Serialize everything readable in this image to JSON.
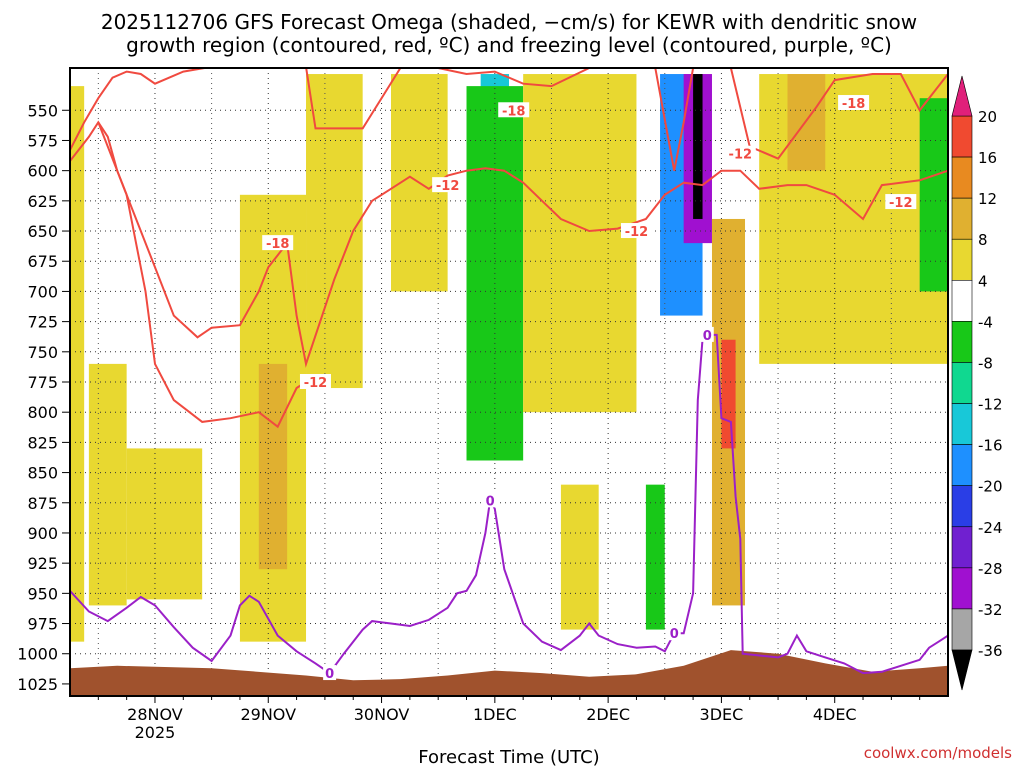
{
  "chart_data": {
    "type": "heatmap",
    "title_line1": "2025112706 GFS Forecast Omega (shaded, −cm/s) for KEWR with dendritic snow",
    "title_line2": "growth region (contoured, red, ºC) and freezing level (contoured, purple, ºC)",
    "xlabel": "Forecast Time (UTC)",
    "credit": "coolwx.com/models",
    "x_range_hours": [
      0,
      186
    ],
    "x_ticks": [
      {
        "hour": 18,
        "label": "28NOV",
        "sub": "2025"
      },
      {
        "hour": 42,
        "label": "29NOV",
        "sub": ""
      },
      {
        "hour": 66,
        "label": "30NOV",
        "sub": ""
      },
      {
        "hour": 90,
        "label": "1DEC",
        "sub": ""
      },
      {
        "hour": 114,
        "label": "2DEC",
        "sub": ""
      },
      {
        "hour": 138,
        "label": "3DEC",
        "sub": ""
      },
      {
        "hour": 162,
        "label": "4DEC",
        "sub": ""
      }
    ],
    "y_range_hpa": [
      515,
      1035
    ],
    "y_ticks": [
      "550",
      "575",
      "600",
      "625",
      "650",
      "675",
      "700",
      "725",
      "750",
      "775",
      "800",
      "825",
      "850",
      "875",
      "900",
      "925",
      "950",
      "975",
      "1000",
      "1025"
    ],
    "colorbar": {
      "ticks": [
        "20",
        "16",
        "12",
        "8",
        "4",
        "-4",
        "-8",
        "-12",
        "-16",
        "-20",
        "-24",
        "-28",
        "-32",
        "-36"
      ],
      "bins": [
        {
          "range": [
            -36,
            -32
          ],
          "color": "#a6a6a6"
        },
        {
          "range": [
            -32,
            -28
          ],
          "color": "#a010d0"
        },
        {
          "range": [
            -28,
            -24
          ],
          "color": "#7020d0"
        },
        {
          "range": [
            -24,
            -20
          ],
          "color": "#2a3ee6"
        },
        {
          "range": [
            -20,
            -16
          ],
          "color": "#1e90ff"
        },
        {
          "range": [
            -16,
            -12
          ],
          "color": "#18c8d8"
        },
        {
          "range": [
            -12,
            -8
          ],
          "color": "#10d890"
        },
        {
          "range": [
            -8,
            -4
          ],
          "color": "#18c818"
        },
        {
          "range": [
            -4,
            4
          ],
          "color": "#ffffff"
        },
        {
          "range": [
            4,
            8
          ],
          "color": "#e8d830"
        },
        {
          "range": [
            8,
            12
          ],
          "color": "#e0b030"
        },
        {
          "range": [
            12,
            16
          ],
          "color": "#e88a20"
        },
        {
          "range": [
            16,
            20
          ],
          "color": "#f04a30"
        },
        {
          "range": [
            20,
            24
          ],
          "color": "#f03070"
        }
      ],
      "over_color": "#e0207a",
      "under_color": "#000000"
    },
    "shaded_regions": [
      {
        "name": "weak-ascent-early",
        "t": [
          0,
          3
        ],
        "p": [
          530,
          990
        ],
        "value": 6
      },
      {
        "name": "weak-ascent-28nov-a",
        "t": [
          4,
          12
        ],
        "p": [
          760,
          960
        ],
        "value": 6
      },
      {
        "name": "weak-ascent-28nov-b",
        "t": [
          12,
          28
        ],
        "p": [
          830,
          955
        ],
        "value": 6
      },
      {
        "name": "weak-ascent-29nov",
        "t": [
          36,
          50
        ],
        "p": [
          620,
          990
        ],
        "value": 6
      },
      {
        "name": "moderate-ascent-29nov",
        "t": [
          40,
          46
        ],
        "p": [
          760,
          930
        ],
        "value": 10
      },
      {
        "name": "weak-ascent-30nov",
        "t": [
          50,
          62
        ],
        "p": [
          520,
          780
        ],
        "value": 6
      },
      {
        "name": "weak-ascent-30nov-b",
        "t": [
          68,
          80
        ],
        "p": [
          520,
          700
        ],
        "value": 6
      },
      {
        "name": "descent-1dec-core",
        "t": [
          87,
          93
        ],
        "p": [
          520,
          640
        ],
        "value": -13
      },
      {
        "name": "descent-1dec-column",
        "t": [
          84,
          96
        ],
        "p": [
          530,
          840
        ],
        "value": -6
      },
      {
        "name": "weak-ascent-2dec",
        "t": [
          96,
          120
        ],
        "p": [
          520,
          800
        ],
        "value": 6
      },
      {
        "name": "weak-ascent-2dec-low",
        "t": [
          104,
          112
        ],
        "p": [
          860,
          980
        ],
        "value": 6
      },
      {
        "name": "descent-2dec-low",
        "t": [
          122,
          126
        ],
        "p": [
          860,
          980
        ],
        "value": -6
      },
      {
        "name": "strong-descent-2dec",
        "t": [
          125,
          134
        ],
        "p": [
          520,
          720
        ],
        "value": -18
      },
      {
        "name": "strong-descent-core",
        "t": [
          130,
          136
        ],
        "p": [
          520,
          660
        ],
        "value": -30
      },
      {
        "name": "extreme-descent-core",
        "t": [
          132,
          134
        ],
        "p": [
          520,
          640
        ],
        "value": -40
      },
      {
        "name": "ascent-3dec-column",
        "t": [
          136,
          143
        ],
        "p": [
          640,
          960
        ],
        "value": 10
      },
      {
        "name": "ascent-3dec-core",
        "t": [
          138,
          141
        ],
        "p": [
          740,
          830
        ],
        "value": 17
      },
      {
        "name": "ascent-4dec",
        "t": [
          146,
          186
        ],
        "p": [
          520,
          760
        ],
        "value": 6
      },
      {
        "name": "ascent-4dec-core",
        "t": [
          152,
          160
        ],
        "p": [
          520,
          600
        ],
        "value": 10
      },
      {
        "name": "descent-4dec-east",
        "t": [
          180,
          186
        ],
        "p": [
          540,
          700
        ],
        "value": -6
      }
    ],
    "contours": [
      {
        "name": "dgz-upper",
        "color": "#f04a40",
        "series_label": "dendritic snow growth region (red)",
        "labels": [
          {
            "text": "-18",
            "t": 94,
            "p": 550
          },
          {
            "text": "-12",
            "t": 80,
            "p": 612
          },
          {
            "text": "-12",
            "t": 120,
            "p": 650
          },
          {
            "text": "-12",
            "t": 142,
            "p": 586
          },
          {
            "text": "-18",
            "t": 166,
            "p": 544
          },
          {
            "text": "-12",
            "t": 176,
            "p": 626
          }
        ],
        "points": [
          [
            0,
            583
          ],
          [
            3,
            560
          ],
          [
            6,
            540
          ],
          [
            9,
            523
          ],
          [
            12,
            518
          ],
          [
            15,
            520
          ],
          [
            18,
            528
          ],
          [
            24,
            518
          ],
          [
            30,
            514
          ],
          [
            40,
            514
          ],
          [
            50,
            514
          ],
          [
            52,
            565
          ],
          [
            62,
            565
          ],
          [
            70,
            515
          ],
          [
            78,
            515
          ],
          [
            84,
            520
          ],
          [
            90,
            518
          ],
          [
            96,
            528
          ],
          [
            102,
            530
          ],
          [
            110,
            515
          ],
          [
            120,
            515
          ],
          [
            124,
            515
          ],
          [
            128,
            600
          ],
          [
            130,
            560
          ],
          [
            132,
            515
          ],
          [
            140,
            515
          ],
          [
            144,
            580
          ],
          [
            150,
            590
          ],
          [
            158,
            548
          ],
          [
            162,
            525
          ],
          [
            170,
            520
          ],
          [
            176,
            520
          ],
          [
            180,
            550
          ],
          [
            186,
            520
          ]
        ]
      },
      {
        "name": "dgz-lower",
        "color": "#f04a40",
        "series_label": "dendritic snow growth region (red)",
        "labels": [
          {
            "text": "-18",
            "t": 44,
            "p": 660
          },
          {
            "text": "-12",
            "t": 52,
            "p": 775
          }
        ],
        "points": [
          [
            0,
            592
          ],
          [
            4,
            572
          ],
          [
            6,
            560
          ],
          [
            8,
            572
          ],
          [
            10,
            600
          ],
          [
            14,
            640
          ],
          [
            18,
            680
          ],
          [
            22,
            720
          ],
          [
            27,
            738
          ],
          [
            30,
            730
          ],
          [
            36,
            728
          ],
          [
            40,
            700
          ],
          [
            42,
            680
          ],
          [
            44,
            670
          ],
          [
            46,
            660
          ],
          [
            48,
            720
          ],
          [
            50,
            760
          ],
          [
            56,
            690
          ],
          [
            60,
            650
          ],
          [
            64,
            625
          ],
          [
            68,
            615
          ],
          [
            72,
            605
          ],
          [
            76,
            615
          ],
          [
            80,
            604
          ],
          [
            84,
            600
          ],
          [
            88,
            598
          ],
          [
            92,
            600
          ],
          [
            96,
            610
          ],
          [
            100,
            625
          ],
          [
            104,
            640
          ],
          [
            110,
            650
          ],
          [
            116,
            648
          ],
          [
            122,
            640
          ],
          [
            126,
            620
          ],
          [
            130,
            610
          ],
          [
            134,
            612
          ],
          [
            138,
            600
          ],
          [
            142,
            600
          ],
          [
            146,
            615
          ],
          [
            152,
            612
          ],
          [
            156,
            612
          ],
          [
            162,
            620
          ],
          [
            168,
            640
          ],
          [
            172,
            612
          ],
          [
            180,
            608
          ],
          [
            186,
            600
          ]
        ]
      },
      {
        "name": "dgz-lowest",
        "color": "#f04a40",
        "series_label": "dendritic snow growth region (red)",
        "labels": [],
        "points": [
          [
            6,
            560
          ],
          [
            12,
            620
          ],
          [
            16,
            700
          ],
          [
            18,
            760
          ],
          [
            22,
            790
          ],
          [
            28,
            808
          ],
          [
            34,
            805
          ],
          [
            40,
            800
          ],
          [
            44,
            812
          ],
          [
            48,
            780
          ],
          [
            52,
            770
          ]
        ]
      },
      {
        "name": "freezing-level",
        "color": "#9b20c8",
        "series_label": "freezing level (purple)",
        "labels": [
          {
            "text": "0",
            "t": 55,
            "p": 1016
          },
          {
            "text": "0",
            "t": 89,
            "p": 873
          },
          {
            "text": "0",
            "t": 128,
            "p": 983
          },
          {
            "text": "0",
            "t": 135,
            "p": 736
          }
        ],
        "points": [
          [
            0,
            948
          ],
          [
            4,
            965
          ],
          [
            8,
            973
          ],
          [
            12,
            962
          ],
          [
            15,
            953
          ],
          [
            18,
            960
          ],
          [
            22,
            978
          ],
          [
            26,
            995
          ],
          [
            30,
            1006
          ],
          [
            34,
            985
          ],
          [
            36,
            960
          ],
          [
            38,
            952
          ],
          [
            40,
            957
          ],
          [
            44,
            985
          ],
          [
            48,
            998
          ],
          [
            52,
            1008
          ],
          [
            55,
            1016
          ],
          [
            58,
            1000
          ],
          [
            62,
            980
          ],
          [
            64,
            973
          ],
          [
            68,
            975
          ],
          [
            72,
            977
          ],
          [
            76,
            972
          ],
          [
            80,
            962
          ],
          [
            82,
            950
          ],
          [
            84,
            948
          ],
          [
            86,
            935
          ],
          [
            88,
            900
          ],
          [
            89,
            873
          ],
          [
            90,
            880
          ],
          [
            92,
            930
          ],
          [
            96,
            975
          ],
          [
            100,
            990
          ],
          [
            104,
            997
          ],
          [
            108,
            985
          ],
          [
            110,
            975
          ],
          [
            112,
            985
          ],
          [
            116,
            992
          ],
          [
            120,
            995
          ],
          [
            124,
            994
          ],
          [
            126,
            998
          ],
          [
            128,
            983
          ],
          [
            130,
            983
          ],
          [
            132,
            950
          ],
          [
            133,
            790
          ],
          [
            134,
            740
          ],
          [
            136,
            736
          ],
          [
            137,
            736
          ],
          [
            138,
            805
          ],
          [
            140,
            808
          ],
          [
            141,
            870
          ],
          [
            142,
            905
          ],
          [
            142.5,
            1000
          ],
          [
            150,
            1003
          ],
          [
            152,
            1000
          ],
          [
            154,
            985
          ],
          [
            156,
            998
          ],
          [
            160,
            1003
          ],
          [
            164,
            1008
          ],
          [
            168,
            1016
          ],
          [
            172,
            1015
          ],
          [
            176,
            1010
          ],
          [
            180,
            1005
          ],
          [
            182,
            995
          ],
          [
            184,
            990
          ],
          [
            186,
            985
          ]
        ]
      }
    ],
    "terrain": {
      "color": "#a0522d",
      "points": [
        [
          0,
          1012
        ],
        [
          10,
          1010
        ],
        [
          30,
          1012
        ],
        [
          50,
          1018
        ],
        [
          60,
          1022
        ],
        [
          70,
          1021
        ],
        [
          80,
          1018
        ],
        [
          90,
          1014
        ],
        [
          100,
          1016
        ],
        [
          110,
          1019
        ],
        [
          120,
          1017
        ],
        [
          130,
          1010
        ],
        [
          140,
          997
        ],
        [
          150,
          1000
        ],
        [
          160,
          1008
        ],
        [
          170,
          1015
        ],
        [
          180,
          1012
        ],
        [
          186,
          1010
        ]
      ]
    }
  }
}
